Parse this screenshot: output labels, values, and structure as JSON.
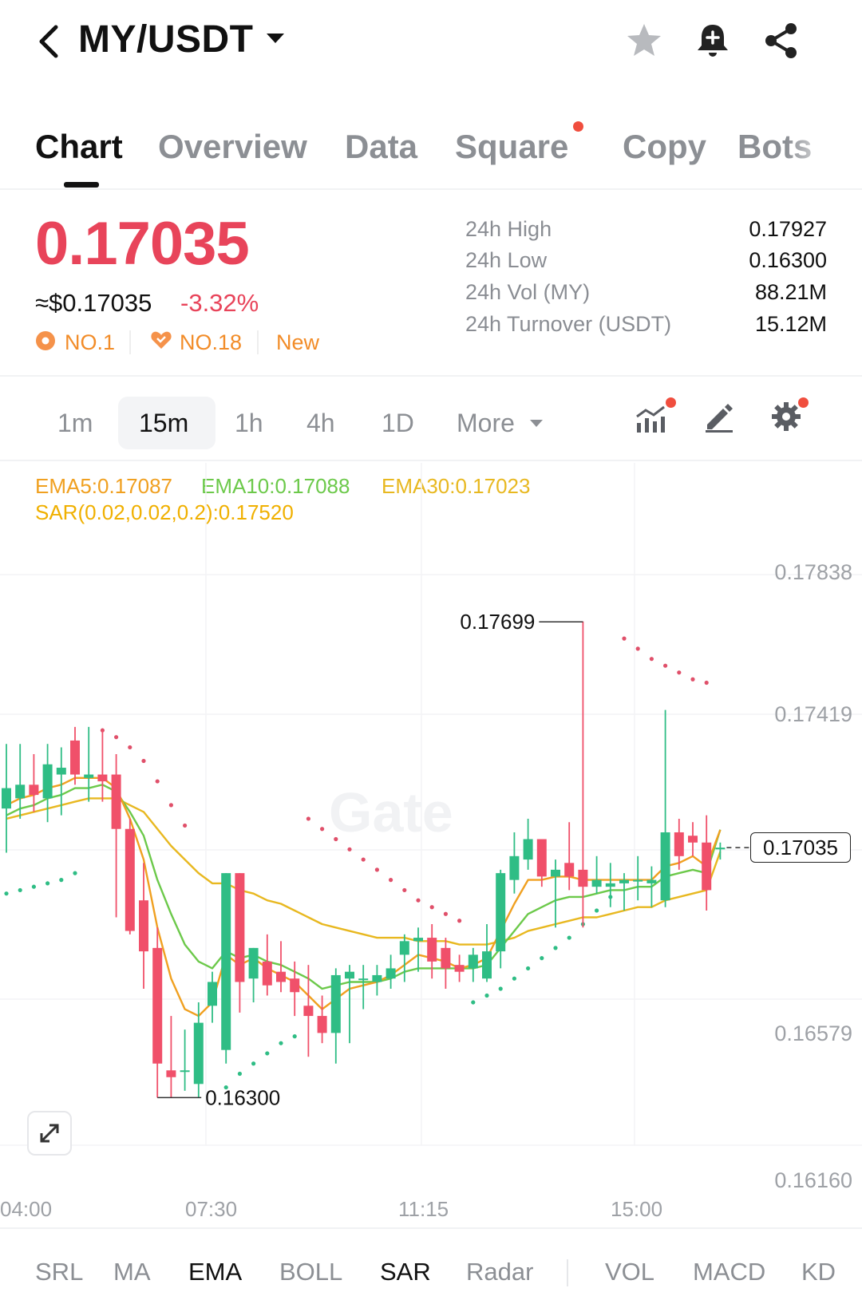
{
  "header": {
    "pair": "MY/USDT",
    "icons": [
      "back-arrow-icon",
      "caret-down-icon",
      "star-icon",
      "bell-plus-icon",
      "share-icon"
    ]
  },
  "tabs": [
    {
      "label": "Chart",
      "active": true
    },
    {
      "label": "Overview"
    },
    {
      "label": "Data"
    },
    {
      "label": "Square",
      "dot": true
    },
    {
      "label": "Copy"
    },
    {
      "label": "Bots"
    }
  ],
  "ticker": {
    "price": "0.17035",
    "usd_price": "≈$0.17035",
    "change": "-3.32%",
    "badges": [
      "NO.1",
      "NO.18",
      "New"
    ],
    "stats": [
      {
        "label": "24h High",
        "value": "0.17927"
      },
      {
        "label": "24h Low",
        "value": "0.16300"
      },
      {
        "label": "24h Vol (MY)",
        "value": "88.21M"
      },
      {
        "label": "24h Turnover (USDT)",
        "value": "15.12M"
      }
    ]
  },
  "intervals": {
    "items": [
      "1m",
      "15m",
      "1h",
      "4h",
      "1D"
    ],
    "active": "15m",
    "more_label": "More",
    "tool_icons": [
      "indicator-chart-icon",
      "draw-pen-icon",
      "settings-gear-icon"
    ]
  },
  "indicators": {
    "ema5": "EMA5:0.17087",
    "ema10": "EMA10:0.17088",
    "ema30": "EMA30:0.17023",
    "sar": "SAR(0.02,0.02,0.2):0.17520",
    "colors": {
      "ema5": "#f0a020",
      "ema10": "#6cc94a",
      "ema30": "#e8b820",
      "sar_text": "#f0b000",
      "up": "#2fbd85",
      "down": "#f0506a",
      "sar_dot_down": "#e0506a",
      "sar_dot_up": "#2fbd85"
    }
  },
  "chart_data": {
    "type": "candlestick",
    "y_ticks": [
      "0.17838",
      "0.17419",
      "0.16579",
      "0.16160"
    ],
    "x_ticks": [
      "04:00",
      "07:30",
      "11:15",
      "15:00"
    ],
    "ylim": [
      0.1616,
      0.17838
    ],
    "current_price_label": "0.17035",
    "annotations": [
      {
        "label": "0.17699",
        "value": 0.17699
      },
      {
        "label": "0.16300",
        "value": 0.163
      }
    ],
    "candles": [
      {
        "o": 0.1715,
        "h": 0.1734,
        "l": 0.1702,
        "c": 0.1721
      },
      {
        "o": 0.1718,
        "h": 0.1734,
        "l": 0.1712,
        "c": 0.1722
      },
      {
        "o": 0.1722,
        "h": 0.1731,
        "l": 0.1714,
        "c": 0.1719
      },
      {
        "o": 0.1718,
        "h": 0.1734,
        "l": 0.1711,
        "c": 0.1728
      },
      {
        "o": 0.1725,
        "h": 0.1733,
        "l": 0.1713,
        "c": 0.1727
      },
      {
        "o": 0.1735,
        "h": 0.1739,
        "l": 0.1722,
        "c": 0.1725
      },
      {
        "o": 0.1724,
        "h": 0.1739,
        "l": 0.1717,
        "c": 0.1725
      },
      {
        "o": 0.1725,
        "h": 0.1738,
        "l": 0.1717,
        "c": 0.1723
      },
      {
        "o": 0.1725,
        "h": 0.1731,
        "l": 0.1683,
        "c": 0.1709
      },
      {
        "o": 0.1709,
        "h": 0.1712,
        "l": 0.1678,
        "c": 0.1679
      },
      {
        "o": 0.1688,
        "h": 0.1699,
        "l": 0.1662,
        "c": 0.1673
      },
      {
        "o": 0.1674,
        "h": 0.168,
        "l": 0.163,
        "c": 0.164
      },
      {
        "o": 0.1638,
        "h": 0.1654,
        "l": 0.163,
        "c": 0.1636
      },
      {
        "o": 0.1638,
        "h": 0.165,
        "l": 0.1632,
        "c": 0.1638
      },
      {
        "o": 0.1634,
        "h": 0.1658,
        "l": 0.163,
        "c": 0.1652
      },
      {
        "o": 0.1657,
        "h": 0.1667,
        "l": 0.1652,
        "c": 0.1664
      },
      {
        "o": 0.1644,
        "h": 0.1696,
        "l": 0.164,
        "c": 0.1696
      },
      {
        "o": 0.1696,
        "h": 0.1696,
        "l": 0.1655,
        "c": 0.1664
      },
      {
        "o": 0.1665,
        "h": 0.1674,
        "l": 0.1658,
        "c": 0.1674
      },
      {
        "o": 0.167,
        "h": 0.1678,
        "l": 0.166,
        "c": 0.1663
      },
      {
        "o": 0.1667,
        "h": 0.1676,
        "l": 0.1661,
        "c": 0.1664
      },
      {
        "o": 0.1665,
        "h": 0.167,
        "l": 0.1654,
        "c": 0.1661
      },
      {
        "o": 0.1657,
        "h": 0.1669,
        "l": 0.1642,
        "c": 0.1654
      },
      {
        "o": 0.1654,
        "h": 0.166,
        "l": 0.1646,
        "c": 0.1649
      },
      {
        "o": 0.1649,
        "h": 0.1668,
        "l": 0.164,
        "c": 0.1666
      },
      {
        "o": 0.1665,
        "h": 0.1669,
        "l": 0.1646,
        "c": 0.1667
      },
      {
        "o": 0.1665,
        "h": 0.1669,
        "l": 0.1656,
        "c": 0.1665
      },
      {
        "o": 0.1664,
        "h": 0.1669,
        "l": 0.166,
        "c": 0.1666
      },
      {
        "o": 0.1665,
        "h": 0.1672,
        "l": 0.1662,
        "c": 0.1668
      },
      {
        "o": 0.1672,
        "h": 0.1678,
        "l": 0.1664,
        "c": 0.1676
      },
      {
        "o": 0.1676,
        "h": 0.168,
        "l": 0.1667,
        "c": 0.1677
      },
      {
        "o": 0.1677,
        "h": 0.1681,
        "l": 0.1665,
        "c": 0.167
      },
      {
        "o": 0.1674,
        "h": 0.1677,
        "l": 0.1662,
        "c": 0.1668
      },
      {
        "o": 0.1669,
        "h": 0.1672,
        "l": 0.1664,
        "c": 0.1667
      },
      {
        "o": 0.1668,
        "h": 0.1674,
        "l": 0.1664,
        "c": 0.1672
      },
      {
        "o": 0.1665,
        "h": 0.1681,
        "l": 0.1664,
        "c": 0.1673
      },
      {
        "o": 0.1673,
        "h": 0.1697,
        "l": 0.1668,
        "c": 0.1696
      },
      {
        "o": 0.1694,
        "h": 0.1708,
        "l": 0.169,
        "c": 0.1701
      },
      {
        "o": 0.17,
        "h": 0.1712,
        "l": 0.1697,
        "c": 0.1706
      },
      {
        "o": 0.1706,
        "h": 0.1706,
        "l": 0.1692,
        "c": 0.1695
      },
      {
        "o": 0.1695,
        "h": 0.17,
        "l": 0.168,
        "c": 0.1697
      },
      {
        "o": 0.1699,
        "h": 0.1711,
        "l": 0.1691,
        "c": 0.1695
      },
      {
        "o": 0.1697,
        "h": 0.177,
        "l": 0.168,
        "c": 0.1692
      },
      {
        "o": 0.1692,
        "h": 0.1701,
        "l": 0.169,
        "c": 0.1694
      },
      {
        "o": 0.1692,
        "h": 0.1699,
        "l": 0.1686,
        "c": 0.1693
      },
      {
        "o": 0.1693,
        "h": 0.1696,
        "l": 0.1685,
        "c": 0.1694
      },
      {
        "o": 0.1694,
        "h": 0.1701,
        "l": 0.1688,
        "c": 0.1694
      },
      {
        "o": 0.1693,
        "h": 0.1698,
        "l": 0.1686,
        "c": 0.1694
      },
      {
        "o": 0.1688,
        "h": 0.1744,
        "l": 0.1686,
        "c": 0.1708
      },
      {
        "o": 0.1708,
        "h": 0.1712,
        "l": 0.1697,
        "c": 0.1701
      },
      {
        "o": 0.1707,
        "h": 0.1711,
        "l": 0.1701,
        "c": 0.1705
      },
      {
        "o": 0.1705,
        "h": 0.1713,
        "l": 0.1685,
        "c": 0.1691
      },
      {
        "o": 0.1703,
        "h": 0.1705,
        "l": 0.17,
        "c": 0.17035
      }
    ],
    "ema5": [
      0.1716,
      0.1718,
      0.1719,
      0.1721,
      0.1722,
      0.1724,
      0.1724,
      0.1724,
      0.1721,
      0.1712,
      0.17,
      0.168,
      0.1665,
      0.1656,
      0.1654,
      0.1658,
      0.1672,
      0.1669,
      0.1671,
      0.1668,
      0.1666,
      0.1664,
      0.166,
      0.1656,
      0.1659,
      0.1662,
      0.1663,
      0.1664,
      0.1666,
      0.1669,
      0.1672,
      0.1671,
      0.167,
      0.1668,
      0.1669,
      0.1671,
      0.1679,
      0.1687,
      0.1694,
      0.1694,
      0.1695,
      0.1695,
      0.1694,
      0.1694,
      0.1694,
      0.1694,
      0.1694,
      0.1694,
      0.1698,
      0.1699,
      0.1701,
      0.1698,
      0.17087
    ],
    "ema10": [
      0.1713,
      0.1715,
      0.1716,
      0.1718,
      0.1719,
      0.1721,
      0.1721,
      0.1722,
      0.172,
      0.1714,
      0.1707,
      0.1694,
      0.1684,
      0.1675,
      0.167,
      0.1668,
      0.1673,
      0.1671,
      0.1672,
      0.167,
      0.1669,
      0.1667,
      0.1665,
      0.1662,
      0.1663,
      0.1664,
      0.1664,
      0.1664,
      0.1665,
      0.1667,
      0.1668,
      0.1668,
      0.1668,
      0.1668,
      0.1668,
      0.1669,
      0.1674,
      0.1679,
      0.1684,
      0.1686,
      0.1688,
      0.1689,
      0.1689,
      0.169,
      0.1691,
      0.1691,
      0.1692,
      0.1692,
      0.1695,
      0.1696,
      0.1697,
      0.1696,
      0.17088
    ],
    "ema30": [
      0.1712,
      0.1713,
      0.1714,
      0.1715,
      0.1716,
      0.1717,
      0.1718,
      0.1718,
      0.1718,
      0.1716,
      0.1714,
      0.1709,
      0.1704,
      0.17,
      0.1696,
      0.1693,
      0.1693,
      0.1691,
      0.169,
      0.1688,
      0.1687,
      0.1685,
      0.1683,
      0.1681,
      0.168,
      0.1679,
      0.1678,
      0.1677,
      0.1677,
      0.1677,
      0.1676,
      0.1676,
      0.1676,
      0.1675,
      0.1675,
      0.1675,
      0.1676,
      0.1677,
      0.1679,
      0.168,
      0.1681,
      0.1682,
      0.1683,
      0.1683,
      0.1684,
      0.1685,
      0.1686,
      0.1686,
      0.1688,
      0.1689,
      0.169,
      0.1691,
      0.17023
    ],
    "sar": [
      {
        "i": 0,
        "v": 0.169,
        "side": "up"
      },
      {
        "i": 1,
        "v": 0.1691,
        "side": "up"
      },
      {
        "i": 2,
        "v": 0.1692,
        "side": "up"
      },
      {
        "i": 3,
        "v": 0.1693,
        "side": "up"
      },
      {
        "i": 4,
        "v": 0.1694,
        "side": "up"
      },
      {
        "i": 5,
        "v": 0.1696,
        "side": "up"
      },
      {
        "i": 7,
        "v": 0.1738,
        "side": "down"
      },
      {
        "i": 8,
        "v": 0.1736,
        "side": "down"
      },
      {
        "i": 9,
        "v": 0.1733,
        "side": "down"
      },
      {
        "i": 10,
        "v": 0.1729,
        "side": "down"
      },
      {
        "i": 11,
        "v": 0.1723,
        "side": "down"
      },
      {
        "i": 12,
        "v": 0.1716,
        "side": "down"
      },
      {
        "i": 13,
        "v": 0.171,
        "side": "down"
      },
      {
        "i": 16,
        "v": 0.1633,
        "side": "up"
      },
      {
        "i": 17,
        "v": 0.1637,
        "side": "up"
      },
      {
        "i": 18,
        "v": 0.164,
        "side": "up"
      },
      {
        "i": 19,
        "v": 0.1643,
        "side": "up"
      },
      {
        "i": 20,
        "v": 0.1646,
        "side": "up"
      },
      {
        "i": 21,
        "v": 0.1648,
        "side": "up"
      },
      {
        "i": 22,
        "v": 0.1712,
        "side": "down"
      },
      {
        "i": 23,
        "v": 0.1709,
        "side": "down"
      },
      {
        "i": 24,
        "v": 0.1706,
        "side": "down"
      },
      {
        "i": 25,
        "v": 0.1703,
        "side": "down"
      },
      {
        "i": 26,
        "v": 0.17,
        "side": "down"
      },
      {
        "i": 27,
        "v": 0.1697,
        "side": "down"
      },
      {
        "i": 28,
        "v": 0.1694,
        "side": "down"
      },
      {
        "i": 29,
        "v": 0.1691,
        "side": "down"
      },
      {
        "i": 30,
        "v": 0.1688,
        "side": "down"
      },
      {
        "i": 31,
        "v": 0.1686,
        "side": "down"
      },
      {
        "i": 32,
        "v": 0.1684,
        "side": "down"
      },
      {
        "i": 33,
        "v": 0.1682,
        "side": "down"
      },
      {
        "i": 34,
        "v": 0.1658,
        "side": "up"
      },
      {
        "i": 35,
        "v": 0.166,
        "side": "up"
      },
      {
        "i": 36,
        "v": 0.1662,
        "side": "up"
      },
      {
        "i": 37,
        "v": 0.1665,
        "side": "up"
      },
      {
        "i": 38,
        "v": 0.1668,
        "side": "up"
      },
      {
        "i": 39,
        "v": 0.1671,
        "side": "up"
      },
      {
        "i": 40,
        "v": 0.1674,
        "side": "up"
      },
      {
        "i": 41,
        "v": 0.1677,
        "side": "up"
      },
      {
        "i": 42,
        "v": 0.1681,
        "side": "up"
      },
      {
        "i": 43,
        "v": 0.1685,
        "side": "up"
      },
      {
        "i": 44,
        "v": 0.1689,
        "side": "up"
      },
      {
        "i": 45,
        "v": 0.1765,
        "side": "down"
      },
      {
        "i": 46,
        "v": 0.1762,
        "side": "down"
      },
      {
        "i": 47,
        "v": 0.1759,
        "side": "down"
      },
      {
        "i": 48,
        "v": 0.1757,
        "side": "down"
      },
      {
        "i": 49,
        "v": 0.1755,
        "side": "down"
      },
      {
        "i": 50,
        "v": 0.1753,
        "side": "down"
      },
      {
        "i": 51,
        "v": 0.1752,
        "side": "down"
      }
    ]
  },
  "bottom_tabs": [
    {
      "label": "SRL"
    },
    {
      "label": "MA"
    },
    {
      "label": "EMA",
      "active": true
    },
    {
      "label": "BOLL"
    },
    {
      "label": "SAR",
      "active": true
    },
    {
      "label": "Radar"
    },
    {
      "label": "VOL"
    },
    {
      "label": "MACD"
    },
    {
      "label": "KD"
    }
  ]
}
